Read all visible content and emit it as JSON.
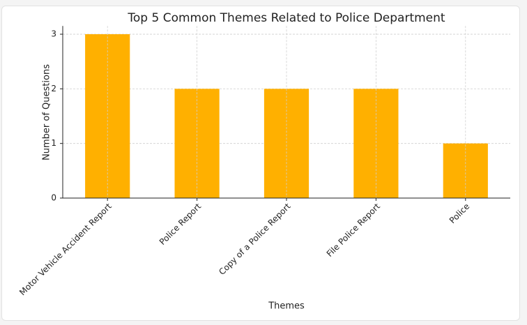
{
  "chart_data": {
    "type": "bar",
    "title": "Top 5 Common Themes Related to Police Department",
    "x_label": "Themes",
    "y_label": "Number of Questions",
    "categories": [
      "Motor Vehicle Accident Report",
      "Police Report",
      "Copy of a Police Report",
      "File Police Report",
      "Police"
    ],
    "values": [
      3,
      2,
      2,
      2,
      1
    ],
    "color": "#ffb000",
    "ylim": [
      0,
      3.15
    ],
    "yticks": [
      0,
      1,
      2,
      3
    ],
    "grid": true
  }
}
